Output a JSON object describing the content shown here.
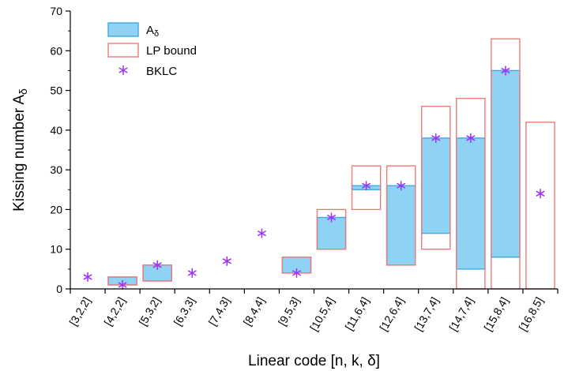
{
  "chart_data": {
    "type": "bar",
    "title": "",
    "xlabel": "Linear code [n, k, δ]",
    "ylabel": "Kissing number Aδ",
    "ylim": [
      0,
      70
    ],
    "yticks": [
      0,
      10,
      20,
      30,
      40,
      50,
      60,
      70
    ],
    "categories": [
      "[3,2,2]",
      "[4,2,2]",
      "[5,3,2]",
      "[6,3,3]",
      "[7,4,3]",
      "[8,4,4]",
      "[9,5,3]",
      "[10,5,4]",
      "[11,6,4]",
      "[12,6,4]",
      "[13,7,4]",
      "[14,7,4]",
      "[15,8,4]",
      "[16,8,5]"
    ],
    "legend": {
      "placement": "top-left",
      "entries": [
        {
          "label_main": "A",
          "label_sub": "δ"
        },
        {
          "label_main": "LP bound",
          "label_sub": ""
        },
        {
          "label_main": "BKLC",
          "label_sub": ""
        }
      ]
    },
    "series": [
      {
        "name": "Aδ",
        "kind": "range",
        "low": [
          3,
          1,
          2,
          4,
          7,
          14,
          4,
          10,
          25,
          6,
          14,
          5,
          8,
          24
        ],
        "high": [
          3,
          3,
          6,
          4,
          7,
          14,
          8,
          18,
          26,
          26,
          38,
          38,
          55,
          24
        ]
      },
      {
        "name": "LP bound",
        "kind": "range",
        "low": [
          3,
          1,
          2,
          4,
          7,
          14,
          4,
          10,
          20,
          6,
          10,
          0,
          0,
          0
        ],
        "high": [
          3,
          3,
          6,
          4,
          7,
          14,
          8,
          20,
          31,
          31,
          46,
          48,
          63,
          42
        ]
      },
      {
        "name": "BKLC",
        "kind": "point",
        "values": [
          3,
          1,
          6,
          4,
          7,
          14,
          4,
          18,
          26,
          26,
          38,
          38,
          55,
          24
        ]
      }
    ],
    "colors": {
      "a_fill": "#8fd3f4",
      "a_stroke": "#3fa9e0",
      "lp_stroke": "#f07a7a",
      "bklc_marker": "#9b30ff"
    },
    "grid": false
  }
}
